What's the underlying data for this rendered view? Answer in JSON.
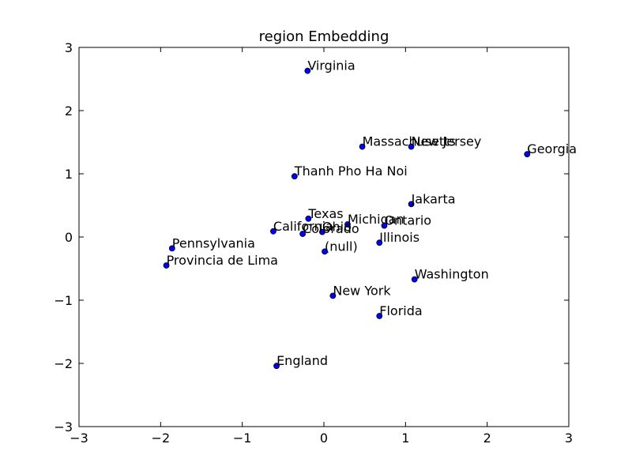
{
  "chart_data": {
    "type": "scatter",
    "title": "region Embedding",
    "xlabel": "",
    "ylabel": "",
    "xlim": [
      -3,
      3
    ],
    "ylim": [
      -3,
      3
    ],
    "xticks": [
      -3,
      -2,
      -1,
      0,
      1,
      2,
      3
    ],
    "yticks": [
      -3,
      -2,
      -1,
      0,
      1,
      2,
      3
    ],
    "grid": false,
    "marker_color": "#0000ff",
    "points": [
      {
        "label": "Virginia",
        "x": -0.2,
        "y": 2.63
      },
      {
        "label": "Massachusetts",
        "x": 0.47,
        "y": 1.43
      },
      {
        "label": "New Jersey",
        "x": 1.07,
        "y": 1.43
      },
      {
        "label": "Georgia",
        "x": 2.49,
        "y": 1.31
      },
      {
        "label": "Thanh Pho Ha Noi",
        "x": -0.36,
        "y": 0.96
      },
      {
        "label": "Jakarta",
        "x": 1.07,
        "y": 0.52
      },
      {
        "label": "Texas",
        "x": -0.19,
        "y": 0.29
      },
      {
        "label": "Michigan",
        "x": 0.29,
        "y": 0.2
      },
      {
        "label": "Ontario",
        "x": 0.74,
        "y": 0.18
      },
      {
        "label": "California",
        "x": -0.62,
        "y": 0.09
      },
      {
        "label": "Ohio",
        "x": -0.02,
        "y": 0.08
      },
      {
        "label": "Colorado",
        "x": -0.26,
        "y": 0.05
      },
      {
        "label": "Illinois",
        "x": 0.68,
        "y": -0.09
      },
      {
        "label": "Pennsylvania",
        "x": -1.86,
        "y": -0.18
      },
      {
        "label": "(null)",
        "x": 0.01,
        "y": -0.23
      },
      {
        "label": "Provincia de Lima",
        "x": -1.93,
        "y": -0.45
      },
      {
        "label": "Washington",
        "x": 1.11,
        "y": -0.67
      },
      {
        "label": "New York",
        "x": 0.11,
        "y": -0.93
      },
      {
        "label": "Florida",
        "x": 0.68,
        "y": -1.25
      },
      {
        "label": "England",
        "x": -0.58,
        "y": -2.04
      }
    ]
  }
}
